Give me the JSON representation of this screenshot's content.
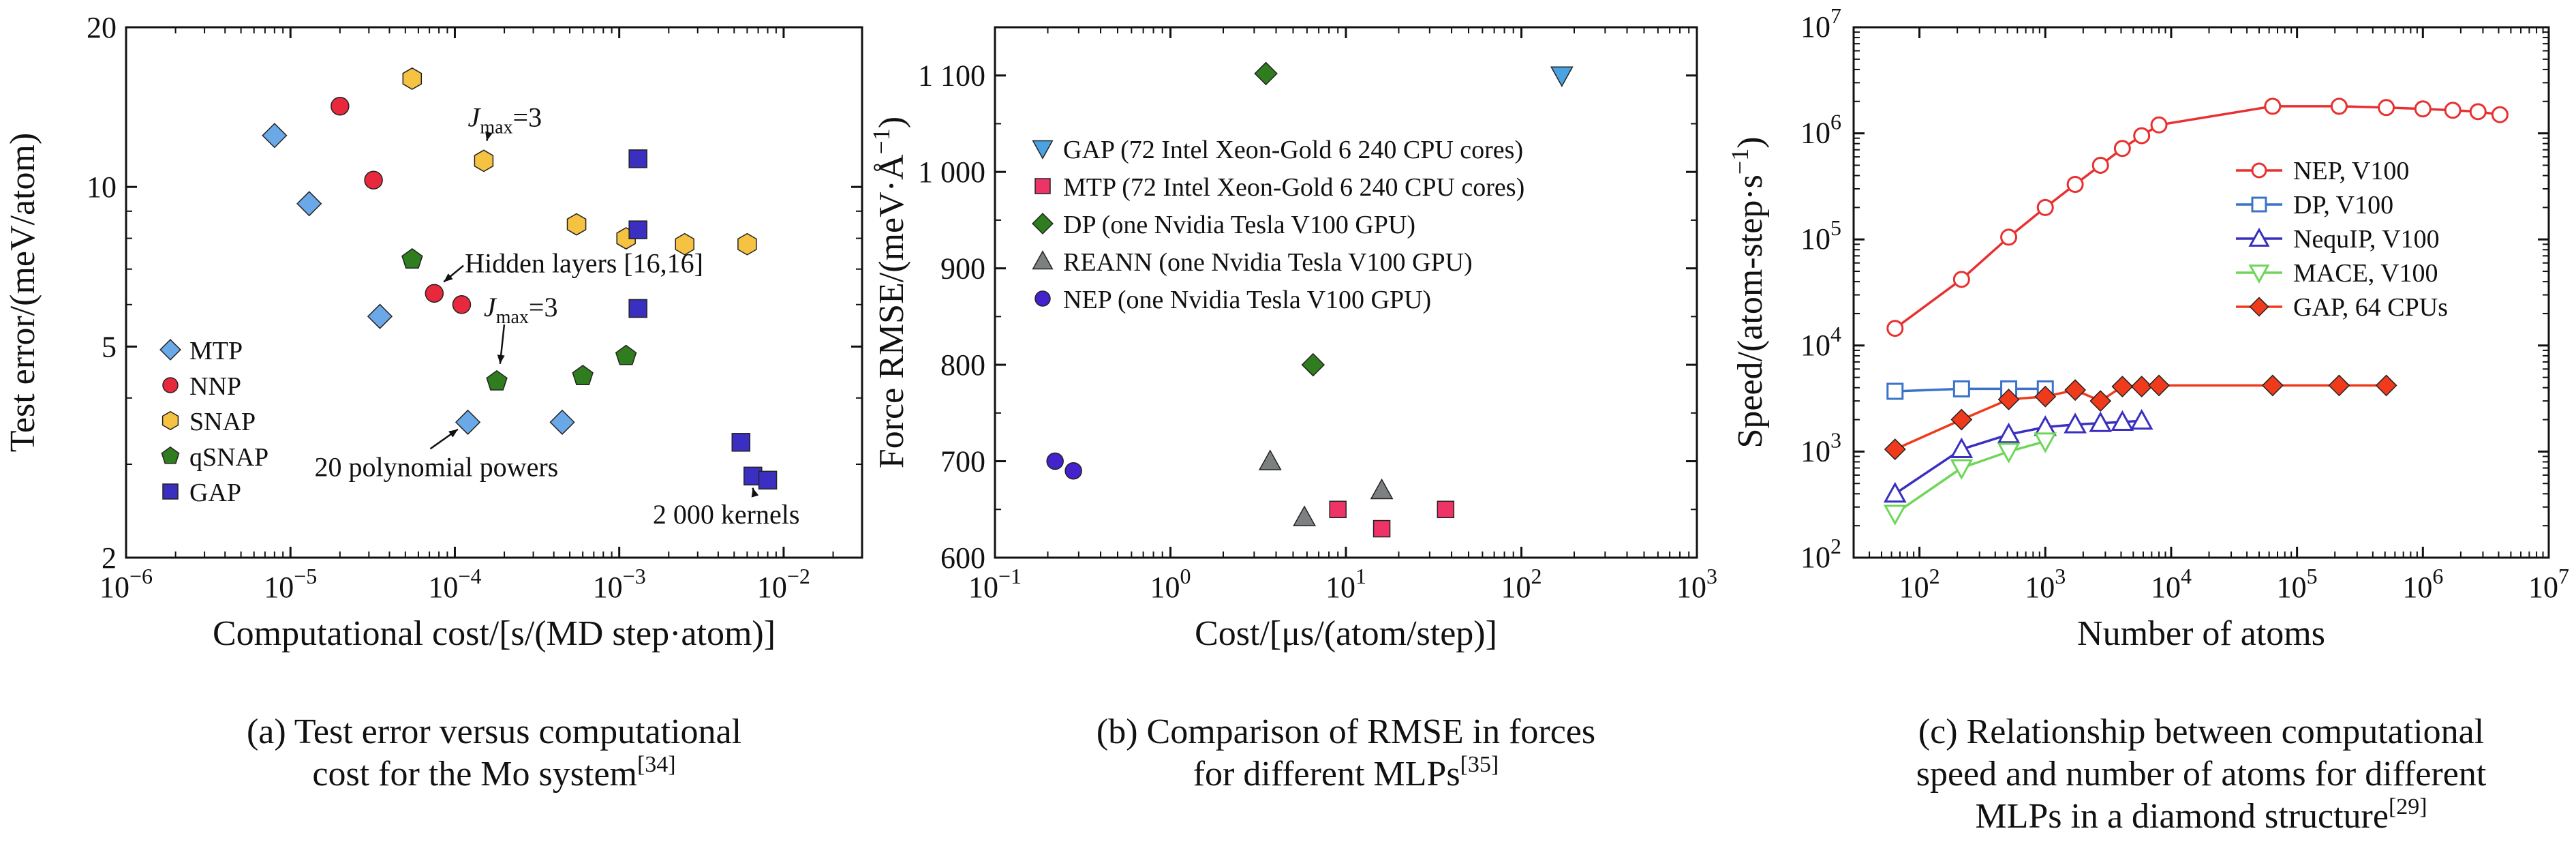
{
  "colors": {
    "MTP_a": "#6aa8e8",
    "NNP": "#e8283c",
    "SNAP": "#f5c242",
    "qSNAP": "#2f7d1e",
    "GAP_a": "#3a2fc0",
    "GAP_b": "#4aa3e0",
    "MTP_b": "#ee3366",
    "DP_b": "#2f7d1e",
    "REANN": "#7d8080",
    "NEP_b": "#4422cc",
    "NEP_c": "#e83030",
    "DP_c": "#3a73c8",
    "NequIP": "#3a2fc0",
    "MACE": "#6fd65a",
    "GAP_c": "#f03a1c"
  },
  "chart_data": [
    {
      "type": "scatter",
      "panel": "a",
      "xlabel": "Computational cost/[s/(MD step·atom)]",
      "ylabel": "Test error/(meV/atom)",
      "xscale": "log",
      "yscale": "log",
      "xlim": [
        1e-06,
        0.03
      ],
      "ylim": [
        2,
        20
      ],
      "x_ticks": [
        {
          "v": 1e-06,
          "base": "10",
          "exp": "−6"
        },
        {
          "v": 1e-05,
          "base": "10",
          "exp": "−5"
        },
        {
          "v": 0.0001,
          "base": "10",
          "exp": "−4"
        },
        {
          "v": 0.001,
          "base": "10",
          "exp": "−3"
        },
        {
          "v": 0.01,
          "base": "10",
          "exp": "−2"
        }
      ],
      "y_ticks": [
        {
          "v": 2,
          "label": "2"
        },
        {
          "v": 5,
          "label": "5"
        },
        {
          "v": 10,
          "label": "10"
        },
        {
          "v": 20,
          "label": "20"
        }
      ],
      "legend_position": "bottom-left",
      "series": [
        {
          "name": "MTP",
          "marker": "diamond",
          "color": "#6aa8e8",
          "x": [
            8e-06,
            1.3e-05,
            3.5e-05,
            0.00012,
            0.00045
          ],
          "y": [
            12.5,
            9.3,
            5.7,
            3.6,
            3.6
          ]
        },
        {
          "name": "NNP",
          "marker": "circle",
          "color": "#e8283c",
          "x": [
            2e-05,
            3.2e-05,
            7.5e-05,
            0.00011
          ],
          "y": [
            14.2,
            10.3,
            6.3,
            6.0
          ]
        },
        {
          "name": "SNAP",
          "marker": "hexagon",
          "color": "#f5c242",
          "x": [
            5.5e-05,
            0.00015,
            0.00055,
            0.0011,
            0.0025,
            0.006
          ],
          "y": [
            16.0,
            11.2,
            8.5,
            8.0,
            7.8,
            7.8
          ]
        },
        {
          "name": "qSNAP",
          "marker": "pentagon",
          "color": "#2f7d1e",
          "x": [
            5.5e-05,
            0.00018,
            0.0006,
            0.0011
          ],
          "y": [
            7.3,
            4.3,
            4.4,
            4.8
          ]
        },
        {
          "name": "GAP",
          "marker": "square",
          "color": "#3a2fc0",
          "x": [
            0.0013,
            0.0013,
            0.0013,
            0.0055,
            0.0065,
            0.008
          ],
          "y": [
            11.3,
            8.3,
            5.9,
            3.3,
            2.85,
            2.8
          ]
        }
      ],
      "annotations": [
        {
          "text_main": "J",
          "text_sub": "max",
          "text_rest": "=3",
          "tx": 0.00012,
          "ty": 13.0,
          "ax": 0.00015,
          "ay": 11.6
        },
        {
          "text": "Hidden layers [16,16]",
          "tx": 0.000115,
          "ty": 6.9,
          "ax": 7.5e-05,
          "ay": 6.4
        },
        {
          "text_main": "J",
          "text_sub": "max",
          "text_rest": "=3",
          "tx": 0.00015,
          "ty": 5.7,
          "ax": 0.000185,
          "ay": 4.4
        },
        {
          "text": "20 polynomial powers",
          "tx": 1.4e-05,
          "ty": 2.85,
          "ax": 0.00012,
          "ay": 3.6
        },
        {
          "text": "2 000 kernels",
          "tx": 0.0016,
          "ty": 2.32,
          "ax": 0.0062,
          "ay": 2.85
        }
      ],
      "caption": [
        "(a) Test error versus computational",
        "cost for the Mo system"
      ],
      "caption_ref": "[34]"
    },
    {
      "type": "scatter",
      "panel": "b",
      "xlabel": "Cost/[μs/(atom/step)]",
      "ylabel": "Force RMSE/(meV·Å",
      "ylabel_sup": "−1",
      "ylabel_end": ")",
      "xscale": "log",
      "yscale": "linear",
      "xlim": [
        0.1,
        1000
      ],
      "ylim": [
        600,
        1150
      ],
      "x_ticks": [
        {
          "v": 0.1,
          "base": "10",
          "exp": "−1"
        },
        {
          "v": 1,
          "base": "10",
          "exp": "0"
        },
        {
          "v": 10,
          "base": "10",
          "exp": "1"
        },
        {
          "v": 100,
          "base": "10",
          "exp": "2"
        },
        {
          "v": 1000,
          "base": "10",
          "exp": "3"
        }
      ],
      "y_ticks": [
        {
          "v": 600,
          "label": "600"
        },
        {
          "v": 700,
          "label": "700"
        },
        {
          "v": 800,
          "label": "800"
        },
        {
          "v": 900,
          "label": "900"
        },
        {
          "v": 1000,
          "label": "1 000"
        },
        {
          "v": 1100,
          "label": "1 100"
        }
      ],
      "legend_position": "top-left",
      "series": [
        {
          "name": "GAP (72 Intel Xeon-Gold 6 240 CPU cores)",
          "marker": "triangle-down",
          "color": "#4aa3e0",
          "x": [
            170
          ],
          "y": [
            1100
          ]
        },
        {
          "name": "MTP (72 Intel Xeon-Gold 6 240 CPU cores)",
          "marker": "square",
          "color": "#ee3366",
          "x": [
            9,
            16,
            37
          ],
          "y": [
            650,
            630,
            650
          ]
        },
        {
          "name": "DP (one Nvidia Tesla V100 GPU)",
          "marker": "diamond",
          "color": "#2f7d1e",
          "x": [
            3.5,
            6.5
          ],
          "y": [
            1102,
            800
          ]
        },
        {
          "name": "REANN (one Nvidia Tesla V100 GPU)",
          "marker": "triangle-up",
          "color": "#7d8080",
          "x": [
            3.7,
            5.8,
            16
          ],
          "y": [
            700,
            642,
            670
          ]
        },
        {
          "name": "NEP (one Nvidia Tesla V100 GPU)",
          "marker": "circle",
          "color": "#4422cc",
          "x": [
            0.22,
            0.28
          ],
          "y": [
            700,
            690
          ]
        }
      ],
      "caption": [
        "(b) Comparison of RMSE in forces",
        "for different MLPs"
      ],
      "caption_ref": "[35]"
    },
    {
      "type": "line",
      "panel": "c",
      "xlabel": "Number of atoms",
      "ylabel": "Speed/(atom-step·s",
      "ylabel_sup": "−1",
      "ylabel_end": ")",
      "xscale": "log",
      "yscale": "log",
      "xlim": [
        30,
        10000000.0
      ],
      "ylim": [
        100,
        10000000.0
      ],
      "x_ticks": [
        {
          "v": 100,
          "base": "10",
          "exp": "2"
        },
        {
          "v": 1000,
          "base": "10",
          "exp": "3"
        },
        {
          "v": 10000,
          "base": "10",
          "exp": "4"
        },
        {
          "v": 100000,
          "base": "10",
          "exp": "5"
        },
        {
          "v": 1000000,
          "base": "10",
          "exp": "6"
        },
        {
          "v": 10000000,
          "base": "10",
          "exp": "7"
        }
      ],
      "y_ticks": [
        {
          "v": 100,
          "base": "10",
          "exp": "2"
        },
        {
          "v": 1000,
          "base": "10",
          "exp": "3"
        },
        {
          "v": 10000,
          "base": "10",
          "exp": "4"
        },
        {
          "v": 100000,
          "base": "10",
          "exp": "5"
        },
        {
          "v": 1000000,
          "base": "10",
          "exp": "6"
        },
        {
          "v": 10000000,
          "base": "10",
          "exp": "7"
        }
      ],
      "legend_position": "top-right",
      "series": [
        {
          "name": "NEP, V100",
          "marker": "circle-open",
          "color": "#e83030",
          "x": [
            64,
            216,
            512,
            1000,
            1728,
            2744,
            4096,
            5832,
            8000,
            64000,
            216000,
            512000,
            1000000,
            1728000,
            2744000,
            4096000
          ],
          "y": [
            14500,
            42000,
            105000,
            200000,
            330000,
            500000,
            720000,
            950000,
            1200000,
            1800000,
            1800000,
            1750000,
            1700000,
            1650000,
            1600000,
            1500000
          ]
        },
        {
          "name": "DP, V100",
          "marker": "square-open",
          "color": "#3a73c8",
          "x": [
            64,
            216,
            512,
            1000
          ],
          "y": [
            3700,
            3900,
            3900,
            3900
          ]
        },
        {
          "name": "NequIP, V100",
          "marker": "triangle-up-open",
          "color": "#3a2fc0",
          "x": [
            64,
            216,
            512,
            1000,
            1728,
            2744,
            4096,
            5832
          ],
          "y": [
            400,
            1050,
            1450,
            1700,
            1800,
            1850,
            1900,
            1950
          ]
        },
        {
          "name": "MACE, V100",
          "marker": "triangle-down-open",
          "color": "#6fd65a",
          "x": [
            64,
            216,
            512,
            1000
          ],
          "y": [
            260,
            700,
            1000,
            1250
          ]
        },
        {
          "name": "GAP, 64 CPUs",
          "marker": "diamond",
          "color": "#f03a1c",
          "x": [
            64,
            216,
            512,
            1000,
            1728,
            2744,
            4096,
            5832,
            8000,
            64000,
            216000,
            512000
          ],
          "y": [
            1050,
            2000,
            3100,
            3300,
            3800,
            3000,
            4100,
            4100,
            4200,
            4200,
            4200,
            4200
          ]
        }
      ],
      "caption": [
        "(c) Relationship between computational",
        "speed and number of atoms for different",
        "MLPs in a diamond structure"
      ],
      "caption_ref": "[29]"
    }
  ]
}
